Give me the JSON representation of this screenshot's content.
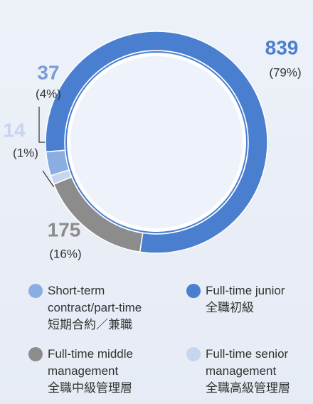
{
  "chart_data": {
    "type": "donut",
    "categories": [
      "Short-term contract/part-time",
      "Full-time junior",
      "Full-time middle management",
      "Full-time senior management"
    ],
    "categories_zh": [
      "短期合約／兼職",
      "全職初級",
      "全職中級管理層",
      "全職高級管理層"
    ],
    "values": [
      37,
      839,
      175,
      14
    ],
    "shares": [
      4,
      79,
      16,
      1
    ],
    "share_labels": [
      "(4%)",
      "(79%)",
      "(16%)",
      "(1%)"
    ],
    "colors": [
      "#8aaee2",
      "#4a7fd0",
      "#8c8c8c",
      "#c8d5ef"
    ]
  }
}
